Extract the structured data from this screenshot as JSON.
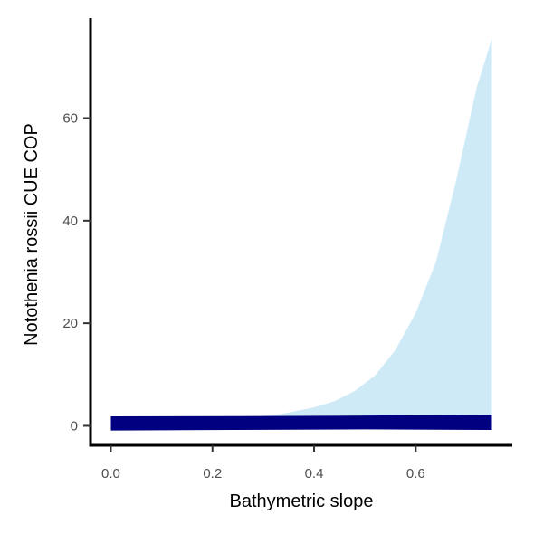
{
  "chart_data": {
    "type": "area",
    "xlabel": "Bathymetric slope",
    "ylabel": "Notothenia rossii  CUE COP",
    "xlim": [
      -0.04,
      0.79
    ],
    "ylim": [
      -3.8,
      79.5
    ],
    "x_ticks": [
      0.0,
      0.2,
      0.4,
      0.6
    ],
    "x_tick_labels": [
      "0.0",
      "0.2",
      "0.4",
      "0.6"
    ],
    "y_ticks": [
      0,
      20,
      40,
      60
    ],
    "y_tick_labels": [
      "0",
      "20",
      "40",
      "60"
    ],
    "grid": false,
    "legend": "none",
    "series": [
      {
        "role": "upper-interval",
        "color": "#cfeaf7",
        "x": [
          0.0,
          0.3,
          0.33,
          0.36,
          0.4,
          0.44,
          0.48,
          0.52,
          0.56,
          0.6,
          0.64,
          0.68,
          0.72,
          0.75
        ],
        "lower": [
          1.9,
          1.95,
          1.95,
          1.96,
          1.97,
          1.98,
          1.99,
          2.0,
          2.02,
          2.04,
          2.06,
          2.08,
          2.1,
          2.12
        ],
        "upper": [
          1.9,
          1.95,
          2.2,
          2.8,
          3.6,
          4.8,
          6.8,
          9.8,
          14.8,
          22.0,
          32.0,
          48.0,
          66.0,
          75.5
        ]
      },
      {
        "role": "fit-band",
        "color": "#000080",
        "x": [
          0.0,
          0.25,
          0.5,
          0.75
        ],
        "lower": [
          -0.9,
          -0.8,
          -0.7,
          -0.8
        ],
        "upper": [
          1.85,
          1.9,
          2.0,
          2.15
        ]
      }
    ]
  }
}
